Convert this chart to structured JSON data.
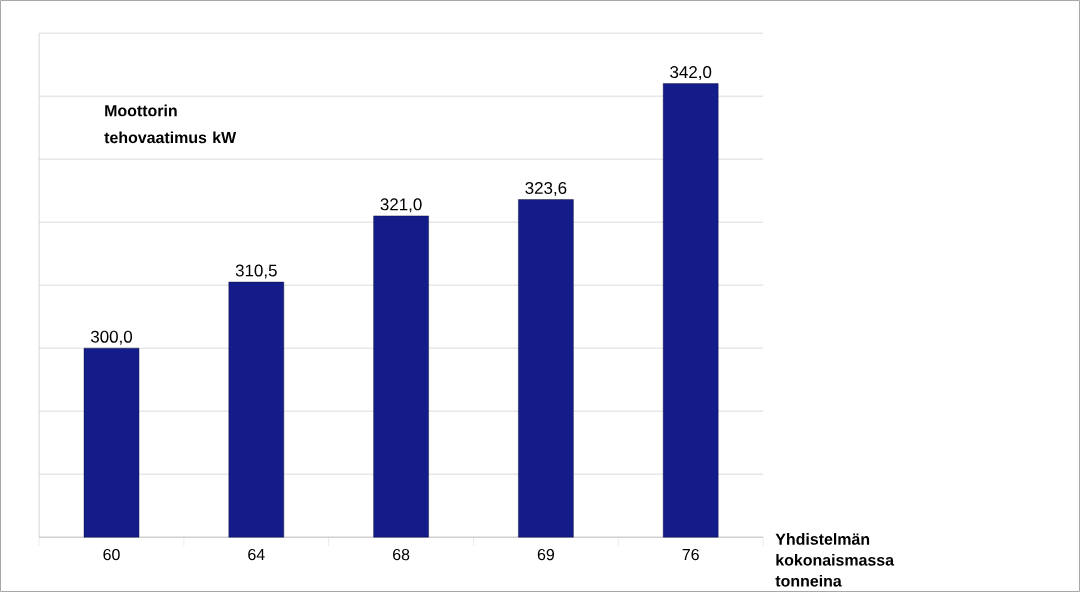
{
  "chart_data": {
    "type": "bar",
    "ylabel": "Moottorin tehovaatimus kW",
    "xlabel": "Yhdistelmän kokonaismassa tonneina",
    "categories": [
      "60",
      "64",
      "68",
      "69",
      "76"
    ],
    "values": [
      300.0,
      310.5,
      321.0,
      323.6,
      342.0
    ],
    "value_labels": [
      "300,0",
      "310,5",
      "321,0",
      "323,6",
      "342,0"
    ],
    "color": "#141c8a",
    "ylim": [
      270,
      350
    ],
    "yticks": [
      {
        "value": 270,
        "label": null
      },
      {
        "value": 280,
        "label": null
      },
      {
        "value": 290,
        "label": null
      },
      {
        "value": 300,
        "label": null
      },
      {
        "value": 310,
        "label": null
      },
      {
        "value": 320,
        "label": null
      },
      {
        "value": 330,
        "label": null
      },
      {
        "value": 340,
        "label": null
      },
      {
        "value": 350,
        "label": null
      }
    ],
    "tick_labels": "x",
    "grid": "y"
  }
}
